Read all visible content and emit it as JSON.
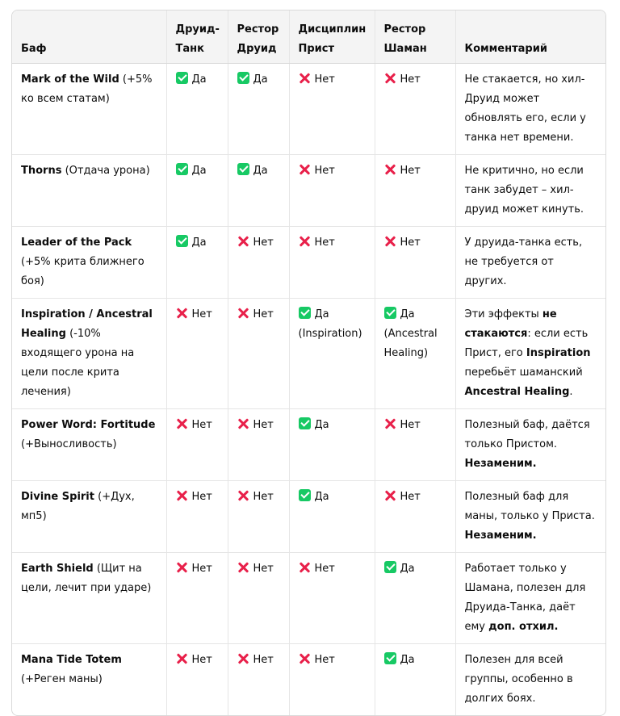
{
  "headers": [
    "Баф",
    "Друид-Танк",
    "Рестор Друид",
    "Дисциплин Прист",
    "Рестор Шаман",
    "Комментарий"
  ],
  "rows": [
    {
      "name": "Mark of the Wild",
      "desc": " (+5% ко всем статам)",
      "cells": [
        {
          "v": "yes",
          "t": "Да"
        },
        {
          "v": "yes",
          "t": "Да"
        },
        {
          "v": "no",
          "t": "Нет"
        },
        {
          "v": "no",
          "t": "Нет"
        }
      ],
      "comment": [
        {
          "t": "Не стакается, но хил-Друид может обновлять его, если у танка нет времени."
        }
      ]
    },
    {
      "name": "Thorns",
      "desc": " (Отдача урона)",
      "cells": [
        {
          "v": "yes",
          "t": "Да"
        },
        {
          "v": "yes",
          "t": "Да"
        },
        {
          "v": "no",
          "t": "Нет"
        },
        {
          "v": "no",
          "t": "Нет"
        }
      ],
      "comment": [
        {
          "t": "Не критично, но если танк забудет – хил-друид может кинуть."
        }
      ]
    },
    {
      "name": "Leader of the Pack",
      "desc": " (+5% крита ближнего боя)",
      "cells": [
        {
          "v": "yes",
          "t": "Да"
        },
        {
          "v": "no",
          "t": "Нет"
        },
        {
          "v": "no",
          "t": "Нет"
        },
        {
          "v": "no",
          "t": "Нет"
        }
      ],
      "comment": [
        {
          "t": "У друида-танка есть, не требуется от других."
        }
      ]
    },
    {
      "name": "Inspiration / Ancestral Healing",
      "desc": " (-10% входящего урона на цели после крита лечения)",
      "cells": [
        {
          "v": "no",
          "t": "Нет"
        },
        {
          "v": "no",
          "t": "Нет"
        },
        {
          "v": "yes",
          "t": "Да (Inspiration)"
        },
        {
          "v": "yes",
          "t": "Да (Ancestral Healing)"
        }
      ],
      "comment": [
        {
          "t": "Эти эффекты "
        },
        {
          "t": "не стакаются",
          "b": true
        },
        {
          "t": ": если есть Прист, его "
        },
        {
          "t": "Inspiration",
          "b": true
        },
        {
          "t": " перебьёт шаманский "
        },
        {
          "t": "Ancestral Healing",
          "b": true
        },
        {
          "t": "."
        }
      ]
    },
    {
      "name": "Power Word: Fortitude",
      "desc": " (+Выносливость)",
      "cells": [
        {
          "v": "no",
          "t": "Нет"
        },
        {
          "v": "no",
          "t": "Нет"
        },
        {
          "v": "yes",
          "t": "Да"
        },
        {
          "v": "no",
          "t": "Нет"
        }
      ],
      "comment": [
        {
          "t": "Полезный баф, даётся только Пристом. "
        },
        {
          "t": "Незаменим.",
          "b": true
        }
      ]
    },
    {
      "name": "Divine Spirit",
      "desc": " (+Дух, мп5)",
      "cells": [
        {
          "v": "no",
          "t": "Нет"
        },
        {
          "v": "no",
          "t": "Нет"
        },
        {
          "v": "yes",
          "t": "Да"
        },
        {
          "v": "no",
          "t": "Нет"
        }
      ],
      "comment": [
        {
          "t": "Полезный баф для маны, только у Приста. "
        },
        {
          "t": "Незаменим.",
          "b": true
        }
      ]
    },
    {
      "name": "Earth Shield",
      "desc": " (Щит на цели, лечит при ударе)",
      "cells": [
        {
          "v": "no",
          "t": "Нет"
        },
        {
          "v": "no",
          "t": "Нет"
        },
        {
          "v": "no",
          "t": "Нет"
        },
        {
          "v": "yes",
          "t": "Да"
        }
      ],
      "comment": [
        {
          "t": "Работает только у Шамана, полезен для Друида-Танка, даёт ему "
        },
        {
          "t": "доп. отхил.",
          "b": true
        }
      ]
    },
    {
      "name": "Mana Tide Totem",
      "desc": " (+Реген маны)",
      "cells": [
        {
          "v": "no",
          "t": "Нет"
        },
        {
          "v": "no",
          "t": "Нет"
        },
        {
          "v": "no",
          "t": "Нет"
        },
        {
          "v": "yes",
          "t": "Да"
        }
      ],
      "comment": [
        {
          "t": "Полезен для всей группы, особенно в долгих боях."
        }
      ]
    }
  ],
  "icons": {
    "yes": "green-check-icon",
    "no": "red-cross-icon"
  },
  "colors": {
    "yes": "#17c964",
    "no": "#e8204a",
    "header_bg": "#f4f4f4"
  }
}
